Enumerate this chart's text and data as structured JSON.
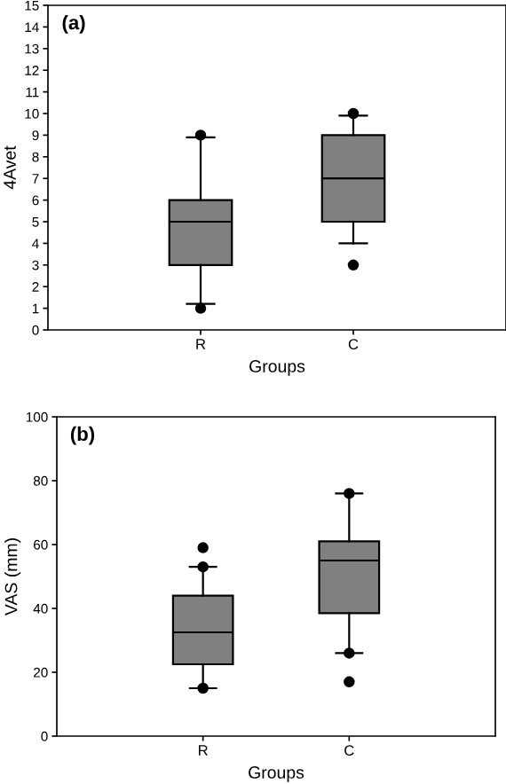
{
  "chart_data": [
    {
      "type": "box",
      "annotations": [
        "(a)"
      ],
      "xlabel": "Groups",
      "ylabel": "4Avet",
      "categories": [
        "R",
        "C"
      ],
      "color": "#808080",
      "boxes": [
        {
          "low": 1.2,
          "q1": 3,
          "median": 5,
          "q3": 6,
          "high": 8.9,
          "outliers": [
            1,
            9
          ]
        },
        {
          "low": 4,
          "q1": 5,
          "median": 7,
          "q3": 9,
          "high": 9.9,
          "outliers": [
            3,
            10
          ]
        }
      ],
      "ylim": [
        0,
        15
      ],
      "yticks": [
        0,
        1,
        2,
        3,
        4,
        5,
        6,
        7,
        8,
        9,
        10,
        11,
        12,
        13,
        14,
        15
      ],
      "grid": false
    },
    {
      "type": "box",
      "annotations": [
        "(b)"
      ],
      "xlabel": "Groups",
      "ylabel": "VAS (mm)",
      "categories": [
        "R",
        "C"
      ],
      "color": "#808080",
      "boxes": [
        {
          "low": 15,
          "q1": 22.5,
          "median": 32.5,
          "q3": 44,
          "high": 53,
          "outliers": [
            15,
            53,
            59
          ]
        },
        {
          "low": 26,
          "q1": 38.5,
          "median": 55,
          "q3": 61,
          "high": 76,
          "outliers": [
            17,
            26,
            76
          ]
        }
      ],
      "ylim": [
        0,
        100
      ],
      "yticks": [
        0,
        20,
        40,
        60,
        80,
        100
      ],
      "grid": false
    }
  ]
}
